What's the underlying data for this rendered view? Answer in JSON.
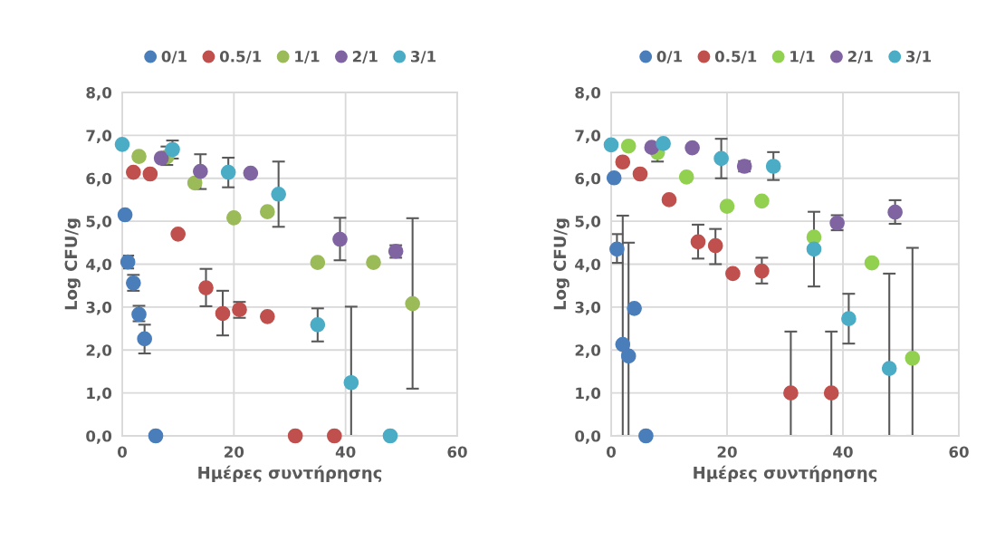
{
  "chart_data": [
    {
      "type": "scatter",
      "xlabel": "Ημέρες συντήρησης",
      "ylabel": "Log CFU/g",
      "xlim": [
        0,
        60
      ],
      "xticks": [
        0,
        20,
        40,
        60
      ],
      "ylim": [
        0,
        8
      ],
      "yticks": [
        {
          "value": 0,
          "label": "0,0"
        },
        {
          "value": 1,
          "label": "1,0"
        },
        {
          "value": 2,
          "label": "2,0"
        },
        {
          "value": 3,
          "label": "3,0"
        },
        {
          "value": 4,
          "label": "4,0"
        },
        {
          "value": 5,
          "label": "5,0"
        },
        {
          "value": 6,
          "label": "6,0"
        },
        {
          "value": 7,
          "label": "7,0"
        },
        {
          "value": 8,
          "label": "8,0"
        }
      ],
      "grid": true,
      "legend": "top",
      "marker": "circle",
      "series": [
        {
          "name": "0/1",
          "color": "#4a7ebb",
          "x": [
            0.5,
            1,
            2,
            3,
            4,
            6
          ],
          "values": [
            5.15,
            4.05,
            3.56,
            2.83,
            2.26,
            0
          ],
          "errors": [
            null,
            [
              3.9,
              4.2
            ],
            [
              3.38,
              3.75
            ],
            [
              2.67,
              3.03
            ],
            [
              1.92,
              2.59
            ],
            null
          ]
        },
        {
          "name": "0.5/1",
          "color": "#c0504d",
          "x": [
            2,
            5,
            10,
            15,
            18,
            21,
            26,
            31,
            38
          ],
          "values": [
            6.14,
            6.1,
            4.7,
            3.45,
            2.85,
            2.94,
            2.78,
            0,
            0
          ],
          "errors": [
            null,
            null,
            null,
            [
              3.02,
              3.89
            ],
            [
              2.34,
              3.38
            ],
            [
              2.75,
              3.12
            ],
            null,
            null,
            null
          ]
        },
        {
          "name": "1/1",
          "color": "#9bbb59",
          "x": [
            3,
            8,
            13,
            20,
            26,
            35,
            45,
            52
          ],
          "values": [
            6.51,
            6.5,
            5.89,
            5.08,
            5.22,
            4.04,
            4.04,
            3.08
          ],
          "errors": [
            null,
            [
              6.31,
              6.74
            ],
            null,
            null,
            null,
            null,
            null,
            [
              1.1,
              5.07
            ]
          ]
        },
        {
          "name": "2/1",
          "color": "#8064a2",
          "x": [
            7,
            14,
            23,
            39,
            49
          ],
          "values": [
            6.47,
            6.16,
            6.12,
            4.58,
            4.3
          ],
          "errors": [
            null,
            [
              5.75,
              6.56
            ],
            null,
            [
              4.09,
              5.08
            ],
            [
              4.15,
              4.44
            ]
          ]
        },
        {
          "name": "3/1",
          "color": "#4bacc6",
          "x": [
            0,
            9,
            19,
            28,
            35,
            41,
            48
          ],
          "values": [
            6.79,
            6.67,
            6.14,
            5.63,
            2.59,
            1.24,
            0
          ],
          "errors": [
            null,
            [
              6.46,
              6.88
            ],
            [
              5.79,
              6.48
            ],
            [
              4.87,
              6.39
            ],
            [
              2.2,
              2.97
            ],
            [
              0,
              3.01
            ],
            null
          ]
        }
      ]
    },
    {
      "type": "scatter",
      "xlabel": "Ημέρες συντήρησης",
      "ylabel": "Log CFU/g",
      "xlim": [
        0,
        60
      ],
      "xticks": [
        0,
        20,
        40,
        60
      ],
      "ylim": [
        0,
        8
      ],
      "yticks": [
        {
          "value": 0,
          "label": "0,0"
        },
        {
          "value": 1,
          "label": "1,0"
        },
        {
          "value": 2,
          "label": "2,0"
        },
        {
          "value": 3,
          "label": "3,0"
        },
        {
          "value": 4,
          "label": "4,0"
        },
        {
          "value": 5,
          "label": "5,0"
        },
        {
          "value": 6,
          "label": "6,0"
        },
        {
          "value": 7,
          "label": "7,0"
        },
        {
          "value": 8,
          "label": "8,0"
        }
      ],
      "grid": true,
      "legend": "top",
      "marker": "circle",
      "series": [
        {
          "name": "0/1",
          "color": "#4a7ebb",
          "x": [
            0.5,
            1,
            2,
            3,
            4,
            6
          ],
          "values": [
            6.01,
            4.35,
            2.13,
            1.86,
            2.97,
            0
          ],
          "errors": [
            null,
            [
              4.03,
              4.7
            ],
            [
              0,
              5.13
            ],
            [
              0,
              4.5
            ],
            null,
            null
          ]
        },
        {
          "name": "0.5/1",
          "color": "#c0504d",
          "x": [
            2,
            5,
            10,
            15,
            18,
            21,
            26,
            31,
            38
          ],
          "values": [
            6.38,
            6.1,
            5.5,
            4.52,
            4.43,
            3.78,
            3.84,
            1.0,
            1.0
          ],
          "errors": [
            null,
            null,
            null,
            [
              4.13,
              4.92
            ],
            [
              4.0,
              4.82
            ],
            null,
            [
              3.55,
              4.15
            ],
            [
              0,
              2.43
            ],
            [
              0,
              2.43
            ]
          ]
        },
        {
          "name": "1/1",
          "color": "#92d050",
          "x": [
            3,
            8,
            13,
            20,
            26,
            35,
            45,
            52
          ],
          "values": [
            6.75,
            6.6,
            6.03,
            5.35,
            5.47,
            4.63,
            4.03,
            1.81
          ],
          "errors": [
            null,
            [
              6.39,
              6.81
            ],
            null,
            null,
            null,
            null,
            null,
            [
              0,
              4.38
            ]
          ]
        },
        {
          "name": "2/1",
          "color": "#8064a2",
          "x": [
            7,
            14,
            23,
            39,
            49
          ],
          "values": [
            6.72,
            6.71,
            6.28,
            4.96,
            5.21
          ],
          "errors": [
            null,
            null,
            [
              6.16,
              6.4
            ],
            [
              4.79,
              5.14
            ],
            [
              4.94,
              5.49
            ]
          ]
        },
        {
          "name": "3/1",
          "color": "#4bacc6",
          "x": [
            0,
            9,
            19,
            28,
            35,
            41,
            48
          ],
          "values": [
            6.78,
            6.81,
            6.46,
            6.28,
            4.35,
            2.73,
            1.57
          ],
          "errors": [
            null,
            null,
            [
              6.0,
              6.92
            ],
            [
              5.96,
              6.61
            ],
            [
              3.48,
              5.22
            ],
            [
              2.15,
              3.31
            ],
            [
              0,
              3.78
            ]
          ]
        }
      ]
    }
  ]
}
